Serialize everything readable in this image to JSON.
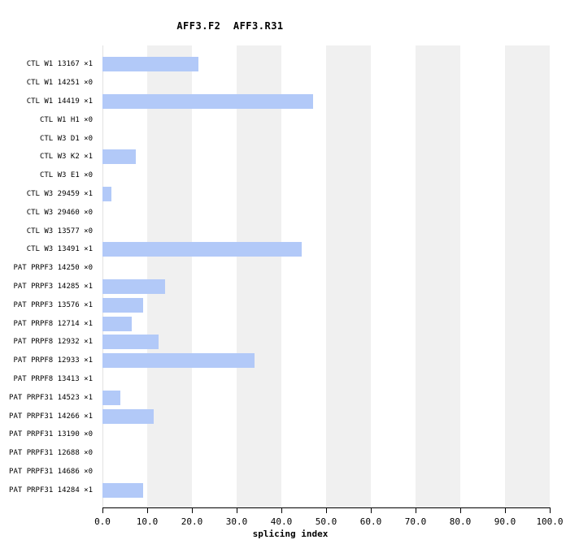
{
  "title": "AFF3.F2  AFF3.R31",
  "xlabel": "splicing index",
  "chart_data": {
    "type": "bar",
    "orientation": "horizontal",
    "title": "AFF3.F2  AFF3.R31",
    "xlabel": "splicing index",
    "ylabel": "",
    "xlim": [
      0,
      100
    ],
    "xticks": [
      0,
      10,
      20,
      30,
      40,
      50,
      60,
      70,
      80,
      90,
      100
    ],
    "xtick_labels": [
      "0.0",
      "10.0",
      "20.0",
      "30.0",
      "40.0",
      "50.0",
      "60.0",
      "70.0",
      "80.0",
      "90.0",
      "100.0"
    ],
    "grid": "alternating-vertical-stripes",
    "legend_position": "none",
    "categories": [
      "CTL W1 13167 ×1",
      "CTL W1 14251 ×0",
      "CTL W1 14419 ×1",
      "CTL W1 H1 ×0",
      "CTL W3 D1 ×0",
      "CTL W3 K2 ×1",
      "CTL W3 E1 ×0",
      "CTL W3 29459 ×1",
      "CTL W3 29460 ×0",
      "CTL W3 13577 ×0",
      "CTL W3 13491 ×1",
      "PAT PRPF3 14250 ×0",
      "PAT PRPF3 14285 ×1",
      "PAT PRPF3 13576 ×1",
      "PAT PRPF8 12714 ×1",
      "PAT PRPF8 12932 ×1",
      "PAT PRPF8 12933 ×1",
      "PAT PRPF8 13413 ×1",
      "PAT PRPF31 14523 ×1",
      "PAT PRPF31 14266 ×1",
      "PAT PRPF31 13190 ×0",
      "PAT PRPF31 12688 ×0",
      "PAT PRPF31 14686 ×0",
      "PAT PRPF31 14284 ×1"
    ],
    "values": [
      21.5,
      0,
      47,
      0,
      0,
      7.5,
      0,
      2,
      0,
      0,
      44.5,
      0,
      14,
      9,
      6.5,
      12.5,
      34,
      0,
      4,
      11.5,
      0,
      0,
      0,
      9
    ],
    "colors": {
      "bar": "#b2c9f8",
      "stripe": "#f0f0f0",
      "background": "#ffffff",
      "axis": "#000000",
      "zero_line": "#e2e2e2",
      "text": "#000000"
    }
  }
}
